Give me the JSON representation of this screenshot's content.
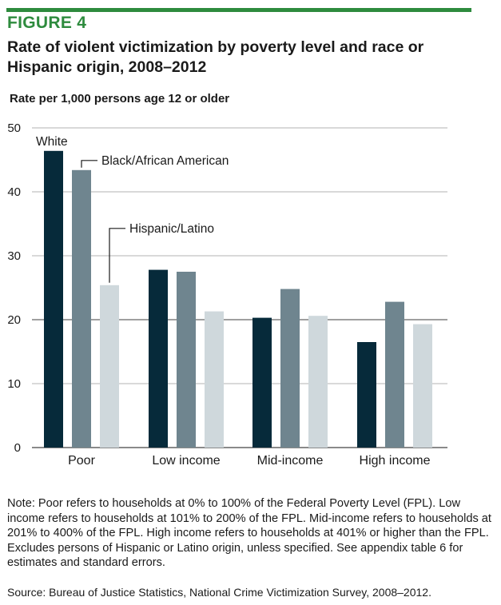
{
  "figure_label": "FIGURE 4",
  "title": "Rate of violent victimization by poverty level and race or Hispanic origin, 2008–2012",
  "colors": {
    "accent": "#2e8b3e",
    "white_series": "#062a3a",
    "black_series": "#6f858f",
    "hispanic_series": "#cfd8dc",
    "grid": "#9a9a9a"
  },
  "chart_data": {
    "type": "bar",
    "ylabel": "Rate per 1,000 persons age 12 or older",
    "xlabel": "",
    "ylim": [
      0,
      50
    ],
    "yticks": [
      0,
      10,
      20,
      30,
      40,
      50
    ],
    "grid": true,
    "categories": [
      "Poor",
      "Low income",
      "Mid-income",
      "High income"
    ],
    "series": [
      {
        "name": "White",
        "color": "#062a3a",
        "values": [
          46.4,
          27.8,
          20.3,
          16.5
        ]
      },
      {
        "name": "Black/African American",
        "color": "#6f858f",
        "values": [
          43.4,
          27.5,
          24.8,
          22.8
        ]
      },
      {
        "name": "Hispanic/Latino",
        "color": "#cfd8dc",
        "values": [
          25.4,
          21.3,
          20.6,
          19.3
        ]
      }
    ]
  },
  "note": "Note: Poor refers to households at 0% to 100% of the Federal Poverty Level (FPL). Low income refers to households at 101% to 200% of the FPL. Mid-income refers to households at 201% to 400% of the FPL. High income refers to households at 401% or higher than the FPL. Excludes persons of Hispanic or Latino origin, unless specified. See appendix table 6 for estimates and standard errors.",
  "source": "Source: Bureau of Justice Statistics, National Crime Victimization Survey, 2008–2012."
}
